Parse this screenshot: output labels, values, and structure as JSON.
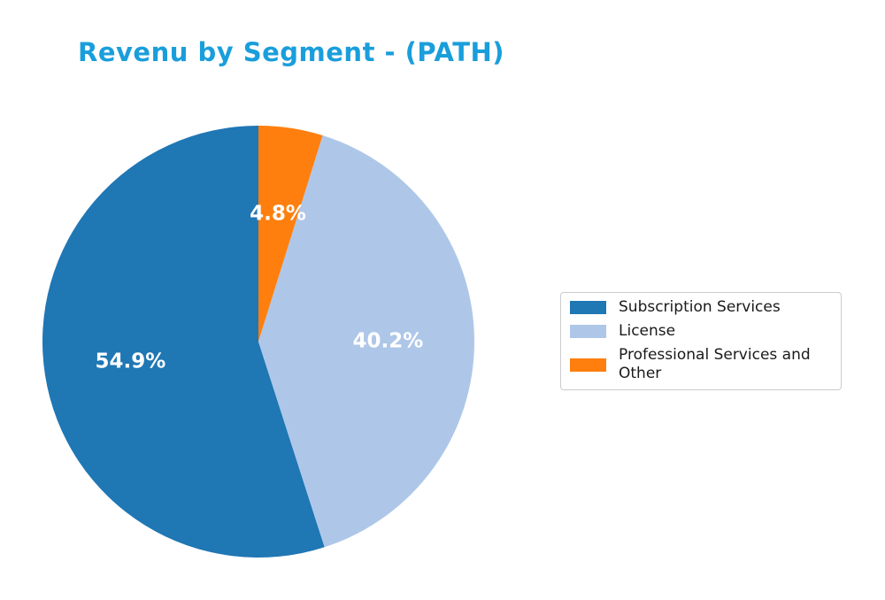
{
  "page": {
    "background": "#ffffff"
  },
  "header": {
    "title": "Revenu by Segment - (PATH)",
    "title_color": "#1a9edb"
  },
  "chart_data": {
    "type": "pie",
    "title": "Revenu by Segment - (PATH)",
    "start_angle": 90,
    "direction": "counterclockwise",
    "pct_distance": 0.6,
    "legend_position": "center right",
    "pct_label_color": "#ffffff",
    "segments": [
      {
        "label": "Subscription Services",
        "value": 54.9,
        "pct_label": "54.9%",
        "color": "#1f77b4"
      },
      {
        "label": "License",
        "value": 40.2,
        "pct_label": "40.2%",
        "color": "#aec7e8"
      },
      {
        "label": "Professional Services and Other",
        "value": 4.8,
        "pct_label": "4.8%",
        "color": "#ff7f0e"
      }
    ]
  },
  "legend": {
    "border_color": "#cccccc",
    "text_color": "#1a1a1a"
  }
}
